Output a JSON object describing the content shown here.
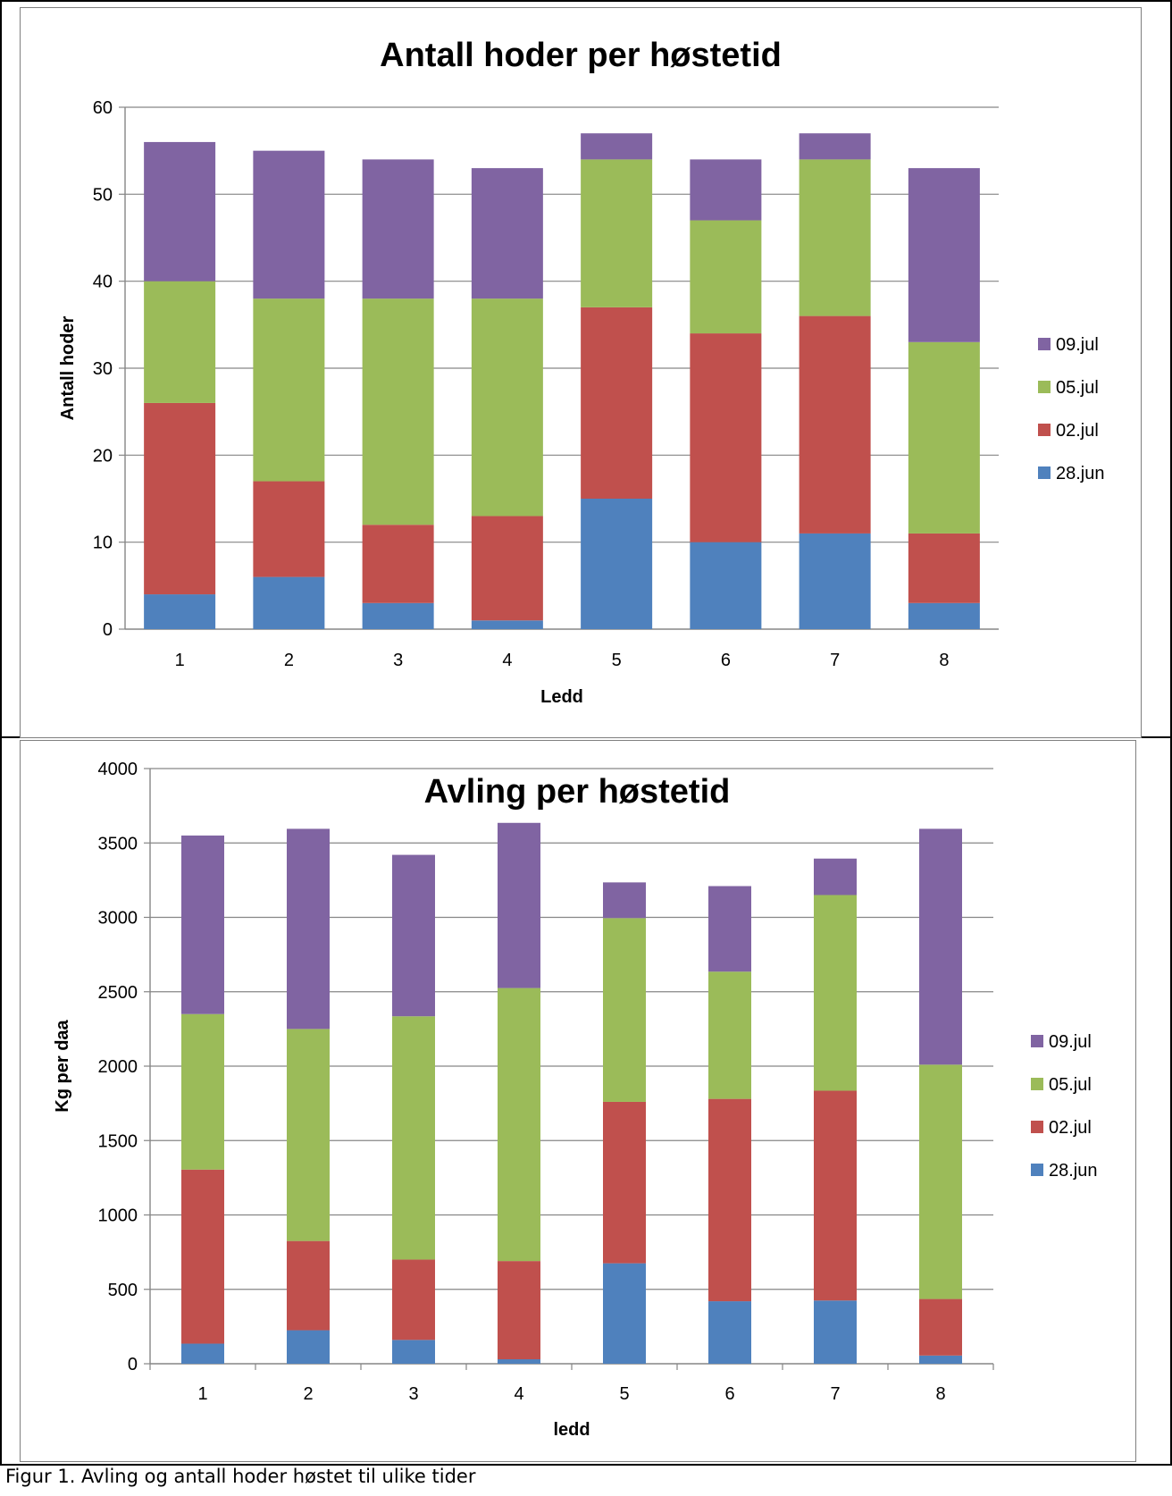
{
  "caption": "Figur 1. Avling og antall hoder høstet til ulike tider",
  "colors": {
    "28.jun": "#4f81bd",
    "02.jul": "#c0504d",
    "05.jul": "#9bbb59",
    "09.jul": "#8064a2",
    "grid": "#868686",
    "axis": "#868686"
  },
  "chart_data": [
    {
      "type": "bar",
      "stacked": true,
      "title": "Antall hoder per høstetid",
      "xlabel": "Ledd",
      "ylabel": "Antall hoder",
      "ylim": [
        0,
        60
      ],
      "yticks": [
        0,
        10,
        20,
        30,
        40,
        50,
        60
      ],
      "grid": true,
      "legend_position": "right",
      "categories": [
        "1",
        "2",
        "3",
        "4",
        "5",
        "6",
        "7",
        "8"
      ],
      "series": [
        {
          "name": "28.jun",
          "values": [
            4,
            6,
            3,
            1,
            15,
            10,
            11,
            3
          ]
        },
        {
          "name": "02.jul",
          "values": [
            22,
            11,
            9,
            12,
            22,
            24,
            25,
            8
          ]
        },
        {
          "name": "05.jul",
          "values": [
            14,
            21,
            26,
            25,
            17,
            13,
            18,
            22
          ]
        },
        {
          "name": "09.jul",
          "values": [
            16,
            17,
            16,
            15,
            3,
            7,
            3,
            20
          ]
        }
      ]
    },
    {
      "type": "bar",
      "stacked": true,
      "title": "Avling per høstetid",
      "xlabel": "ledd",
      "ylabel": "Kg per daa",
      "ylim": [
        0,
        4000
      ],
      "yticks": [
        0,
        500,
        1000,
        1500,
        2000,
        2500,
        3000,
        3500,
        4000
      ],
      "grid": true,
      "legend_position": "right",
      "categories": [
        "1",
        "2",
        "3",
        "4",
        "5",
        "6",
        "7",
        "8"
      ],
      "series": [
        {
          "name": "28.jun",
          "values": [
            135,
            225,
            160,
            30,
            675,
            420,
            425,
            55
          ]
        },
        {
          "name": "02.jul",
          "values": [
            1170,
            600,
            540,
            660,
            1085,
            1360,
            1410,
            380
          ]
        },
        {
          "name": "05.jul",
          "values": [
            1045,
            1425,
            1635,
            1835,
            1235,
            855,
            1315,
            1575
          ]
        },
        {
          "name": "09.jul",
          "values": [
            1200,
            1345,
            1085,
            1110,
            240,
            575,
            245,
            1585
          ]
        }
      ]
    }
  ]
}
